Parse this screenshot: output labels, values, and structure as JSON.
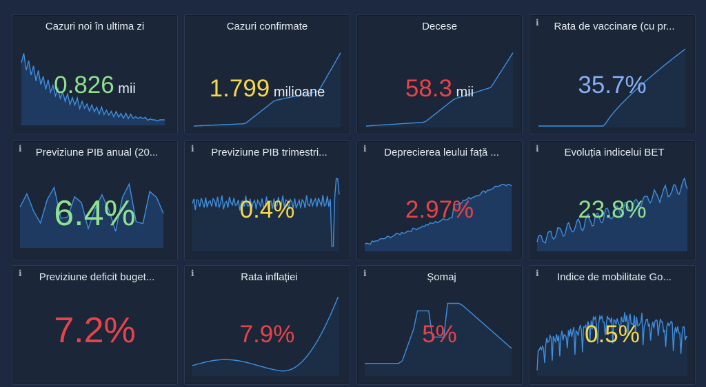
{
  "tiles": [
    {
      "title": "Cazuri noi în ultima zi",
      "value": "0.826",
      "unit": "mii",
      "color": "#8fe08f",
      "info": false
    },
    {
      "title": "Cazuri confirmate",
      "value": "1.799",
      "unit": "milioane",
      "color": "#f7d84a",
      "info": false
    },
    {
      "title": "Decese",
      "value": "58.3",
      "unit": "mii",
      "color": "#e8424a",
      "info": false
    },
    {
      "title": "Rata de vaccinare (cu pr...",
      "value": "35.7%",
      "unit": "",
      "color": "#86aef5",
      "info": true
    },
    {
      "title": "Previziune PIB anual (20...",
      "value": "6.4%",
      "unit": "",
      "color": "#8fe08f",
      "info": true
    },
    {
      "title": "Previziune PIB trimestri...",
      "value": "0.4%",
      "unit": "",
      "color": "#f7d84a",
      "info": true
    },
    {
      "title": "Deprecierea leului față ...",
      "value": "2.97%",
      "unit": "",
      "color": "#e8424a",
      "info": true
    },
    {
      "title": "Evoluția indicelui BET",
      "value": "23.8%",
      "unit": "",
      "color": "#8fe08f",
      "info": true
    },
    {
      "title": "Previziune deficit buget...",
      "value": "7.2%",
      "unit": "",
      "color": "#e8424a",
      "info": true
    },
    {
      "title": "Rata inflației",
      "value": "7.9%",
      "unit": "",
      "color": "#e8424a",
      "info": true
    },
    {
      "title": "Șomaj",
      "value": "5%",
      "unit": "",
      "color": "#e8424a",
      "info": true
    },
    {
      "title": "Indice de mobilitate Go...",
      "value": "0.5%",
      "unit": "",
      "color": "#f7d84a",
      "info": true
    }
  ],
  "info_glyph": "i",
  "colors": {
    "background": "#1c2940",
    "tile": "#1b2738",
    "line": "#3f8fe0",
    "fill": "#1f3d66"
  }
}
